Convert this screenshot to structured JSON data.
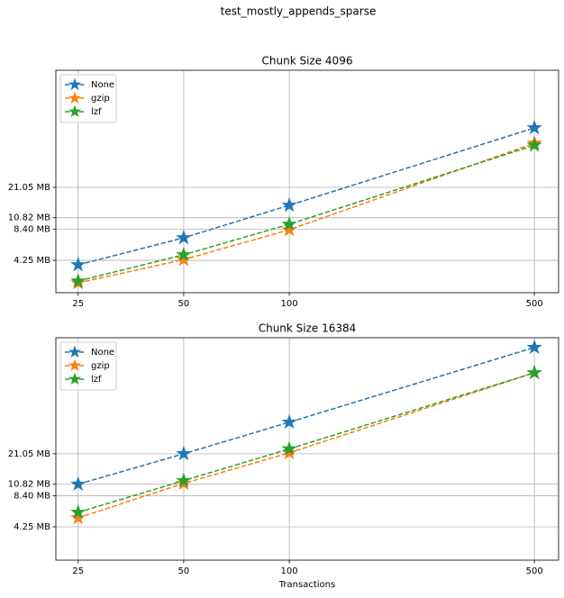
{
  "title": "test_mostly_appends_sparse",
  "chart_data": [
    {
      "type": "line",
      "title": "Chunk Size 4096",
      "log_x": true,
      "log_y": true,
      "grid": true,
      "legend": "upper left",
      "x": [
        25,
        50,
        100,
        500
      ],
      "xlim": [
        21.6,
        586
      ],
      "xticks": [
        25,
        50,
        100,
        500
      ],
      "ylim": [
        2.09,
        274
      ],
      "yticks": [
        {
          "value": 4.25,
          "label": "4.25 MB"
        },
        {
          "value": 8.4,
          "label": "8.40 MB"
        },
        {
          "value": 10.82,
          "label": "10.82 MB"
        },
        {
          "value": 21.05,
          "label": "21.05 MB"
        }
      ],
      "series": [
        {
          "name": "None",
          "color": "#1f77b4",
          "values": [
            3.85,
            6.96,
            14.2,
            77.5
          ]
        },
        {
          "name": "gzip",
          "color": "#ff7f0e",
          "values": [
            2.59,
            4.32,
            8.3,
            55.4
          ]
        },
        {
          "name": "lzf",
          "color": "#2ca02c",
          "values": [
            2.7,
            4.8,
            9.37,
            53
          ]
        }
      ]
    },
    {
      "type": "line",
      "title": "Chunk Size 16384",
      "xlabel": "Transactions",
      "log_x": true,
      "log_y": true,
      "grid": true,
      "legend": "upper left",
      "x": [
        25,
        50,
        100,
        500
      ],
      "xlim": [
        21.6,
        586
      ],
      "xticks": [
        25,
        50,
        100,
        500
      ],
      "ylim": [
        2.05,
        267
      ],
      "yticks": [
        {
          "value": 4.25,
          "label": "4.25 MB"
        },
        {
          "value": 8.4,
          "label": "8.40 MB"
        },
        {
          "value": 10.82,
          "label": "10.82 MB"
        },
        {
          "value": 21.05,
          "label": "21.05 MB"
        }
      ],
      "series": [
        {
          "name": "None",
          "color": "#1f77b4",
          "values": [
            10.82,
            21.05,
            42,
            216
          ]
        },
        {
          "name": "gzip",
          "color": "#ff7f0e",
          "values": [
            5.18,
            11.0,
            21.5,
            124
          ]
        },
        {
          "name": "lzf",
          "color": "#2ca02c",
          "values": [
            5.84,
            11.7,
            23.4,
            124
          ]
        }
      ]
    }
  ]
}
